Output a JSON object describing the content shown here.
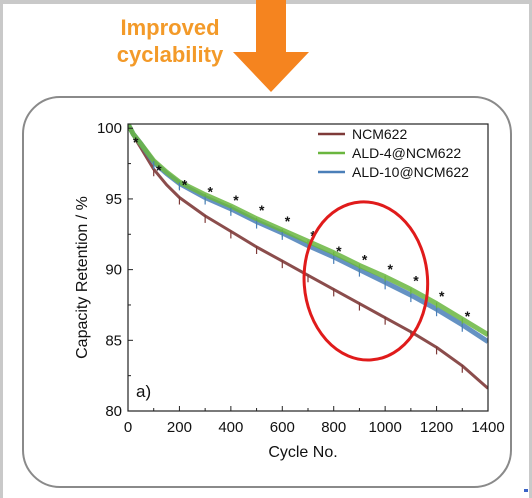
{
  "colors": {
    "banner_text": "#f39a29",
    "arrow": "#f5841f",
    "highlight_ellipse": "#e01b1b",
    "series_ncm622": "#7e3a38",
    "series_ald4": "#6ab63f",
    "series_ald10": "#4a7fb8"
  },
  "banner": {
    "line1": "Improved",
    "line2": "cyclability",
    "arrow_icon": "down-arrow-icon"
  },
  "chart_data": {
    "type": "line",
    "panel_label": "a)",
    "xlabel": "Cycle No.",
    "ylabel": "Capacity Retention / %",
    "xlim": [
      0,
      1400
    ],
    "ylim": [
      80,
      100.3
    ],
    "xticks": [
      "0",
      "200",
      "400",
      "600",
      "800",
      "1000",
      "1200",
      "1400"
    ],
    "yticks": [
      "80",
      "85",
      "90",
      "95",
      "100"
    ],
    "legend_position": "top-right",
    "grid": false,
    "series": [
      {
        "name": "NCM622",
        "color": "#7e3a38",
        "x": [
          0,
          20,
          50,
          100,
          150,
          200,
          300,
          400,
          500,
          600,
          700,
          800,
          900,
          1000,
          1100,
          1200,
          1300,
          1400
        ],
        "y": [
          100.3,
          99.5,
          98.6,
          97.1,
          96.0,
          95.1,
          93.8,
          92.7,
          91.6,
          90.6,
          89.6,
          88.6,
          87.6,
          86.6,
          85.6,
          84.5,
          83.2,
          81.6
        ]
      },
      {
        "name": "ALD-4@NCM622",
        "color": "#6ab63f",
        "x": [
          0,
          20,
          50,
          100,
          150,
          200,
          300,
          400,
          500,
          600,
          700,
          800,
          900,
          1000,
          1100,
          1200,
          1300,
          1400
        ],
        "y": [
          100.3,
          99.6,
          98.9,
          97.7,
          96.9,
          96.2,
          95.3,
          94.5,
          93.6,
          92.8,
          92.0,
          91.2,
          90.3,
          89.5,
          88.6,
          87.6,
          86.5,
          85.4
        ]
      },
      {
        "name": "ALD-10@NCM622",
        "color": "#4a7fb8",
        "x": [
          0,
          20,
          50,
          100,
          150,
          200,
          300,
          400,
          500,
          600,
          700,
          800,
          900,
          1000,
          1100,
          1200,
          1300,
          1400
        ],
        "y": [
          100.3,
          99.6,
          98.9,
          97.6,
          96.8,
          96.1,
          95.1,
          94.3,
          93.4,
          92.6,
          91.7,
          90.9,
          90.0,
          89.1,
          88.2,
          87.2,
          86.1,
          84.9
        ]
      }
    ],
    "asterisk_markers": {
      "symbol": "*",
      "x": [
        30,
        120,
        220,
        320,
        420,
        520,
        620,
        720,
        820,
        920,
        1020,
        1120,
        1220,
        1320
      ],
      "y": [
        99.1,
        97.1,
        96.1,
        95.6,
        95.0,
        94.3,
        93.5,
        92.5,
        91.4,
        90.8,
        90.1,
        89.3,
        88.2,
        86.8
      ]
    },
    "highlight_region": {
      "shape": "ellipse",
      "x_center": 925,
      "y_center": 89.2,
      "x_radius": 240,
      "y_radius": 5.6
    }
  }
}
